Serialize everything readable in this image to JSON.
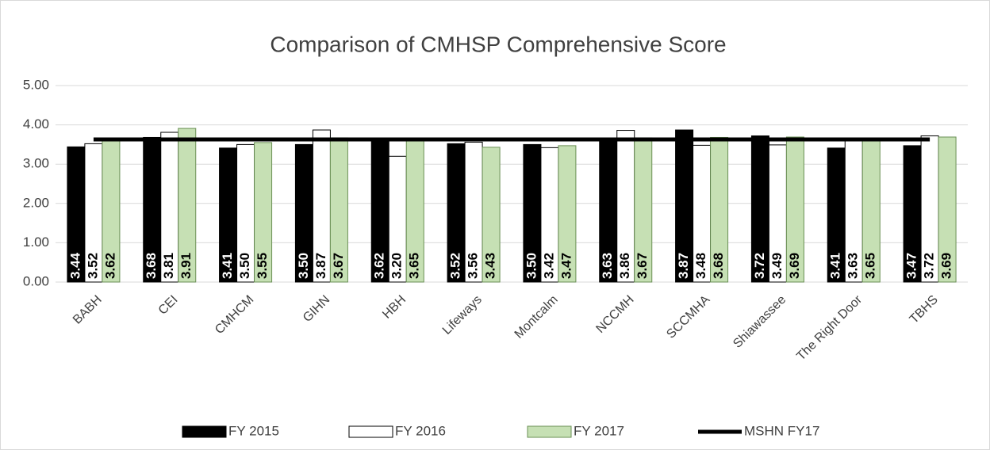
{
  "chart_data": {
    "type": "bar",
    "title": "Comparison of CMHSP Comprehensive Score",
    "categories": [
      "BABH",
      "CEI",
      "CMHCM",
      "GIHN",
      "HBH",
      "Lifeways",
      "Montcalm",
      "NCCMH",
      "SCCMHA",
      "Shiawassee",
      "The Right Door",
      "TBHS"
    ],
    "series": [
      {
        "name": "FY 2015",
        "color": "#000000",
        "values": [
          3.44,
          3.68,
          3.41,
          3.5,
          3.62,
          3.52,
          3.5,
          3.63,
          3.87,
          3.72,
          3.41,
          3.47
        ],
        "value_labels": [
          "3.44",
          "3.68",
          "3.41",
          "3.50",
          "3.62",
          "3.52",
          "3.50",
          "3.63",
          "3.87",
          "3.72",
          "3.41",
          "3.47"
        ]
      },
      {
        "name": "FY 2016",
        "color": "#ffffff",
        "values": [
          3.52,
          3.81,
          3.5,
          3.87,
          3.2,
          3.56,
          3.42,
          3.86,
          3.48,
          3.49,
          3.63,
          3.72
        ],
        "value_labels": [
          "3.52",
          "3.81",
          "3.50",
          "3.87",
          "3.20",
          "3.56",
          "3.42",
          "3.86",
          "3.48",
          "3.49",
          "3.63",
          "3.72"
        ]
      },
      {
        "name": "FY 2017",
        "color": "#c6e0b4",
        "values": [
          3.62,
          3.91,
          3.55,
          3.67,
          3.65,
          3.43,
          3.47,
          3.67,
          3.68,
          3.69,
          3.65,
          3.69
        ],
        "value_labels": [
          "3.62",
          "3.91",
          "3.55",
          "3.67",
          "3.65",
          "3.43",
          "3.47",
          "3.67",
          "3.68",
          "3.69",
          "3.65",
          "3.69"
        ]
      },
      {
        "name": "MSHN FY17",
        "type": "line",
        "color": "#000000",
        "values": [
          3.63,
          3.63,
          3.63,
          3.63,
          3.63,
          3.63,
          3.63,
          3.63,
          3.63,
          3.63,
          3.63,
          3.63
        ]
      }
    ],
    "ylim": [
      0,
      5
    ],
    "yticks": [
      {
        "value": 0,
        "label": "0.00"
      },
      {
        "value": 1,
        "label": "1.00"
      },
      {
        "value": 2,
        "label": "2.00"
      },
      {
        "value": 3,
        "label": "3.00"
      },
      {
        "value": 4,
        "label": "4.00"
      },
      {
        "value": 5,
        "label": "5.00"
      }
    ],
    "grid": true,
    "legend": "bottom"
  }
}
